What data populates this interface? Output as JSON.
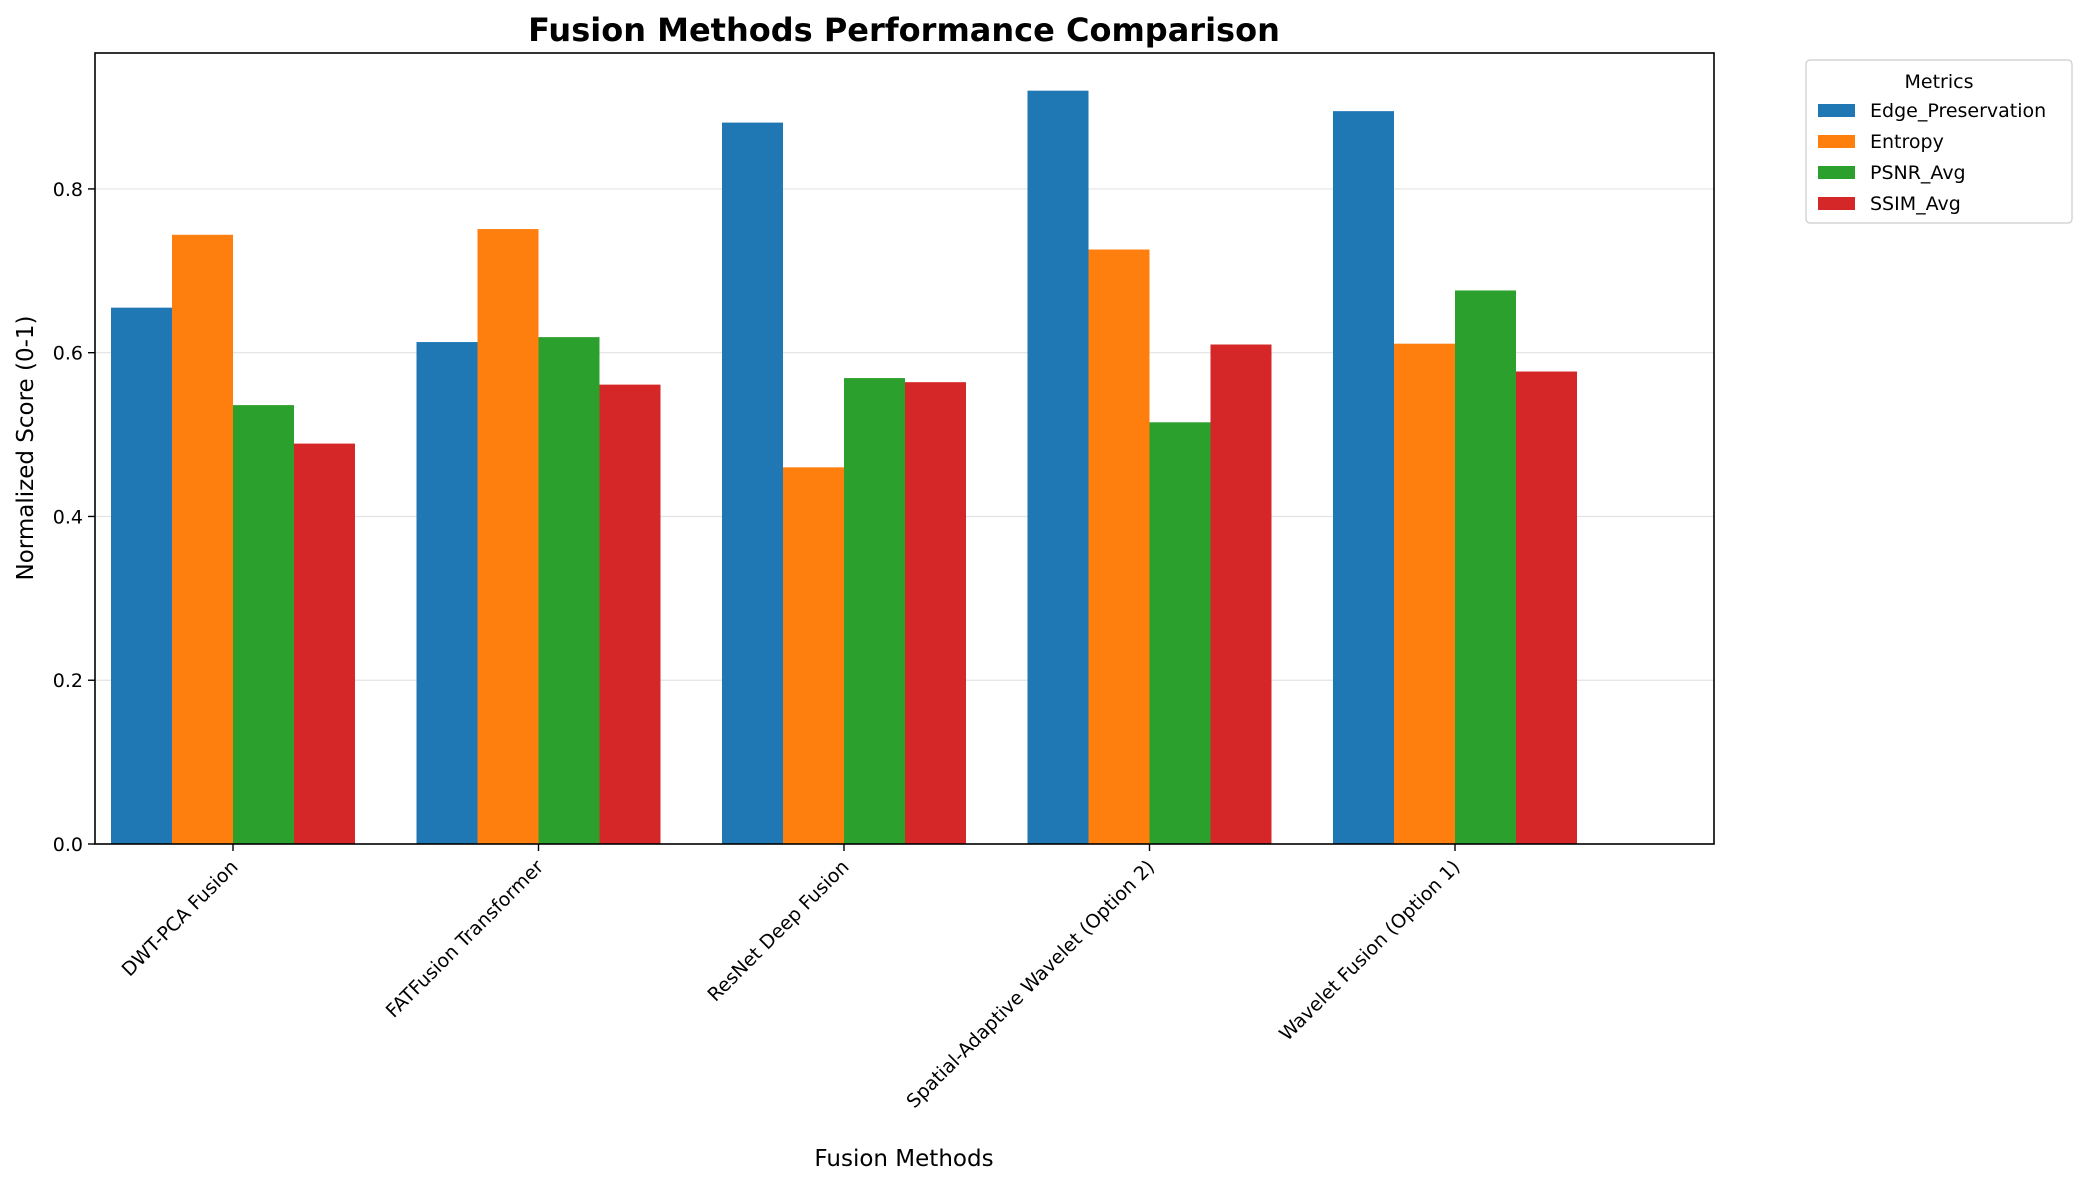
{
  "chart_data": {
    "type": "bar",
    "title": "Fusion Methods Performance Comparison",
    "xlabel": "Fusion Methods",
    "ylabel": "Normalized Score (0-1)",
    "ylim": [
      0,
      0.966
    ],
    "yticks": [
      "0.0",
      "0.2",
      "0.4",
      "0.6",
      "0.8"
    ],
    "grid": "y-axis, light",
    "legend": {
      "title": "Metrics",
      "position": "outside top-right"
    },
    "categories": [
      "DWT-PCA Fusion",
      "FATFusion Transformer",
      "ResNet Deep Fusion",
      "Spatial-Adaptive Wavelet (Option 2)",
      "Wavelet Fusion (Option 1)"
    ],
    "series": [
      {
        "name": "Edge_Preservation",
        "color": "#1f77b4",
        "values": [
          0.655,
          0.613,
          0.881,
          0.92,
          0.895
        ]
      },
      {
        "name": "Entropy",
        "color": "#ff7f0e",
        "values": [
          0.744,
          0.751,
          0.46,
          0.726,
          0.611
        ]
      },
      {
        "name": "PSNR_Avg",
        "color": "#2ca02c",
        "values": [
          0.536,
          0.619,
          0.569,
          0.515,
          0.676
        ]
      },
      {
        "name": "SSIM_Avg",
        "color": "#d62728",
        "values": [
          0.489,
          0.561,
          0.564,
          0.61,
          0.577
        ]
      }
    ]
  }
}
